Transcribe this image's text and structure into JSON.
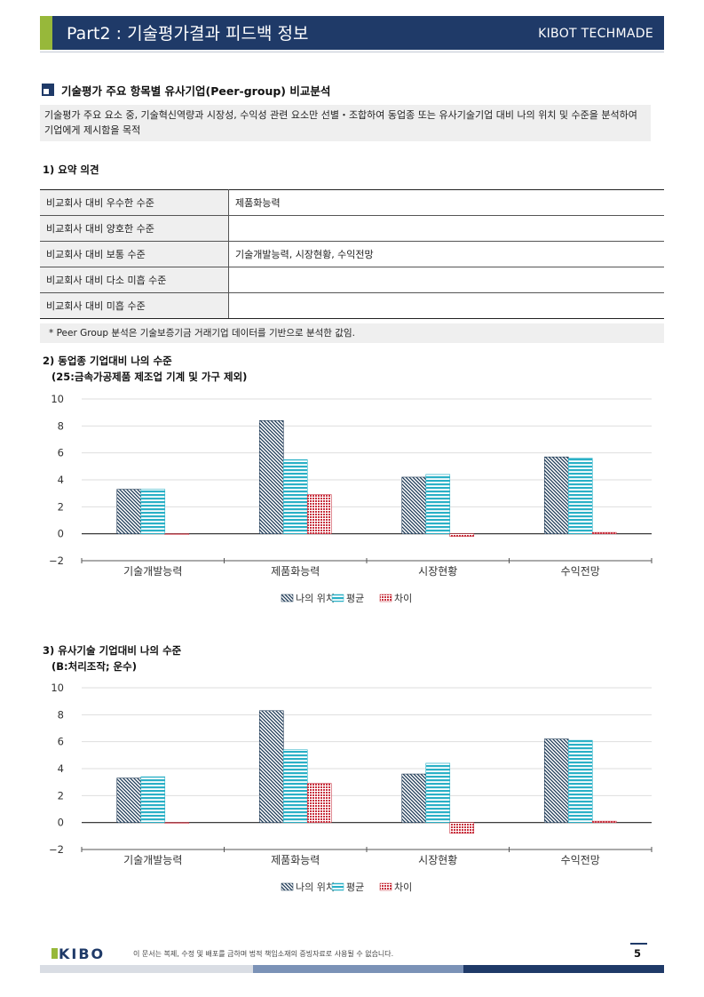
{
  "header": {
    "title": "Part2 : 기술평가결과 피드백 정보",
    "brand": "KIBOT TECHMADE",
    "colors": {
      "navy": "#1f3a68",
      "accent": "#97b83a"
    }
  },
  "section": {
    "title": "기술평가 주요 항목별 유사기업(Peer-group) 비교분석",
    "description": "기술평가 주요 요소 중, 기술혁신역량과 시장성, 수익성 관련 요소만 선별・조합하여 동업종 또는 유사기술기업 대비 나의 위치 및 수준을 분석하여 기업에게 제시함을 목적"
  },
  "summary": {
    "heading": "1)  요약 의견",
    "rows": [
      {
        "label": "비교회사 대비 우수한 수준",
        "value": "제품화능력"
      },
      {
        "label": "비교회사 대비 양호한 수준",
        "value": ""
      },
      {
        "label": "비교회사 대비 보통 수준",
        "value": "기술개발능력,  시장현황,  수익전망"
      },
      {
        "label": "비교회사 대비 다소 미흡 수준",
        "value": ""
      },
      {
        "label": "비교회사 대비 미흡 수준",
        "value": ""
      }
    ],
    "note": "*  Peer Group 분석은 기술보증기금 거래기업 데이터를 기반으로 분석한 값임."
  },
  "chart_headings": [
    {
      "line1": "2) 동업종 기업대비 나의 수준",
      "line2": "(25:금속가공제품 제조업 기계 및 가구 제외)"
    },
    {
      "line1": "3) 유사기술 기업대비 나의 수준",
      "line2": "(B:처리조작; 운수)"
    }
  ],
  "chart_data": [
    {
      "type": "bar",
      "categories": [
        "기술개발능력",
        "제품화능력",
        "시장현황",
        "수익전망"
      ],
      "series": [
        {
          "name": "나의 위치",
          "values": [
            3.3,
            8.4,
            4.2,
            5.7
          ],
          "color": "#1e3a56"
        },
        {
          "name": "평균",
          "values": [
            3.3,
            5.5,
            4.4,
            5.6
          ],
          "color": "#2ab0c6"
        },
        {
          "name": "차이",
          "values": [
            0.0,
            2.9,
            -0.2,
            0.1
          ],
          "color": "#c8323f"
        }
      ],
      "ylim": [
        -2,
        10
      ],
      "yticks": [
        "−2",
        "0",
        "2",
        "4",
        "6",
        "8",
        "10"
      ],
      "grid": true,
      "legend": "bottom"
    },
    {
      "type": "bar",
      "categories": [
        "기술개발능력",
        "제품화능력",
        "시장현황",
        "수익전망"
      ],
      "series": [
        {
          "name": "나의 위치",
          "values": [
            3.3,
            8.3,
            3.6,
            6.2
          ],
          "color": "#1e3a56"
        },
        {
          "name": "평균",
          "values": [
            3.4,
            5.4,
            4.4,
            6.1
          ],
          "color": "#2ab0c6"
        },
        {
          "name": "차이",
          "values": [
            -0.05,
            2.9,
            -0.8,
            0.1
          ],
          "color": "#c8323f"
        }
      ],
      "ylim": [
        -2,
        10
      ],
      "yticks": [
        "−2",
        "0",
        "2",
        "4",
        "6",
        "8",
        "10"
      ],
      "grid": true,
      "legend": "bottom"
    }
  ],
  "footer": {
    "logo_text": "KIBO",
    "disclaimer": "이 문서는 복제, 수정 및 배포를 금하며 법적 책임소재의 증빙자료로 사용될 수 없습니다.",
    "page_number": "5"
  }
}
